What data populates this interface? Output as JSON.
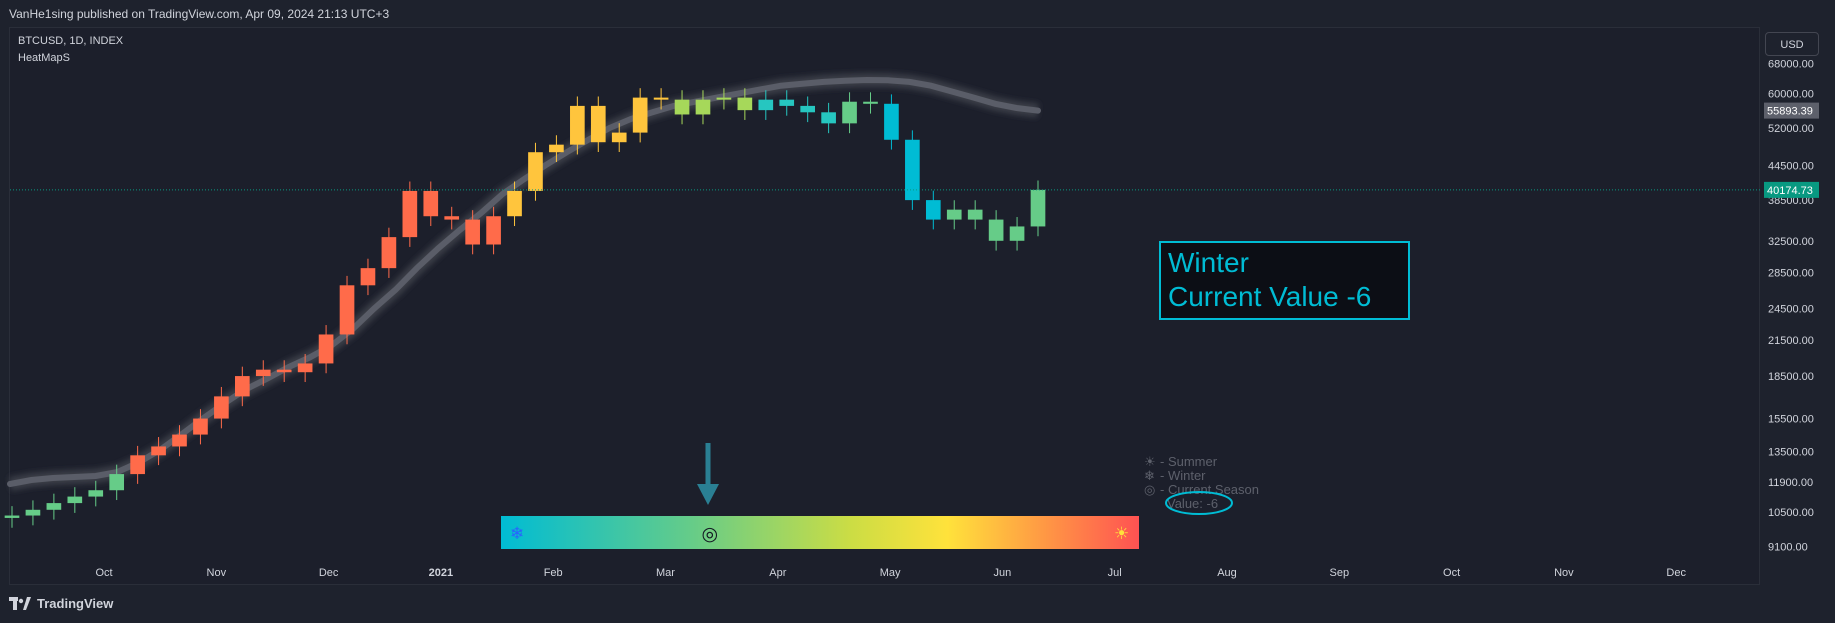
{
  "header": {
    "published_line": "VanHe1sing published on TradingView.com, Apr 09, 2024 21:13 UTC+3"
  },
  "legend": {
    "symbol_line": "BTCUSD, 1D, INDEX",
    "indicator_name": "HeatMapS"
  },
  "currency_button": "USD",
  "brand": "TradingView",
  "colors": {
    "background": "#1c1f2b",
    "cold": "#00bcd4",
    "hot": "#ff5252",
    "price_tag": "#089981",
    "ma_tag": "#5d606b"
  },
  "chart_data": {
    "type": "candlestick",
    "series": [
      {
        "name": "BTCUSD",
        "kind": "candles",
        "close": [
          10350,
          10600,
          10900,
          11200,
          11500,
          12300,
          13300,
          13800,
          14500,
          15500,
          17000,
          18500,
          19000,
          18800,
          19500,
          22000,
          27000,
          29000,
          33000,
          40000,
          36000,
          35500,
          32000,
          36000,
          40000,
          47000,
          48500,
          57000,
          49000,
          51000,
          59000,
          58500,
          55000,
          58500,
          59000,
          56000,
          58500,
          57000,
          55500,
          53000,
          58000,
          57500,
          49500,
          38500,
          35500,
          37000,
          35500,
          32500,
          34500,
          40174.73
        ]
      },
      {
        "name": "",
        "kind": "moving-average",
        "values": [
          11800,
          12000,
          12100,
          12150,
          12200,
          12400,
          12900,
          13600,
          14500,
          15500,
          16500,
          17500,
          18300,
          19200,
          20000,
          21000,
          22500,
          24500,
          26500,
          29000,
          31500,
          34000,
          36500,
          39500,
          42000,
          44500,
          47000,
          49500,
          52000,
          54000,
          55500,
          57000,
          58000,
          59000,
          60000,
          61000,
          62000,
          62500,
          63000,
          63300,
          63500,
          63400,
          63000,
          62000,
          60500,
          59000,
          57500,
          56500,
          55893.39
        ]
      }
    ],
    "price_scale": {
      "type": "log",
      "ticks": [
        "68000.00",
        "60000.00",
        "52000.00",
        "44500.00",
        "38500.00",
        "32500.00",
        "28500.00",
        "24500.00",
        "21500.00",
        "18500.00",
        "15500.00",
        "13500.00",
        "11900.00",
        "10500.00",
        "9100.00"
      ],
      "range": [
        8600,
        75000
      ]
    },
    "time_axis": [
      "Oct",
      "Nov",
      "Dec",
      "2021",
      "Feb",
      "Mar",
      "Apr",
      "May",
      "Jun",
      "Jul",
      "Aug",
      "Sep",
      "Oct",
      "Nov",
      "Dec"
    ],
    "last_price_label": "40174.73",
    "ma_label": "55893.39",
    "info_box": {
      "line1": "Winter",
      "line2": "Current Value -6"
    },
    "season_legend": [
      {
        "icon": "sun-icon",
        "glyph": "☀",
        "text": "- Summer"
      },
      {
        "icon": "snowflake-icon",
        "glyph": "❄",
        "text": "- Winter"
      },
      {
        "icon": "spiral-icon",
        "glyph": "◎",
        "text": "- Current Season"
      }
    ],
    "value_label": "Value: -6",
    "heat_scale": {
      "min_glyph": "❄",
      "max_glyph": "☀",
      "current_glyph": "◎",
      "current_fraction": 0.33
    }
  }
}
